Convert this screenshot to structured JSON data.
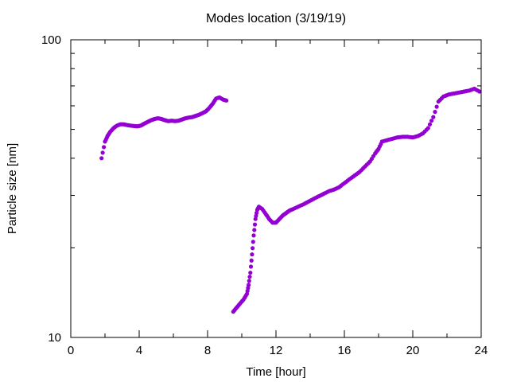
{
  "chart_data": {
    "type": "scatter",
    "title": "Modes location (3/19/19)",
    "xlabel": "Time [hour]",
    "ylabel": "Particle size [nm]",
    "xlim": [
      0,
      24
    ],
    "ylim": [
      10,
      100
    ],
    "yscale": "log",
    "xticks": [
      "0",
      "4",
      "8",
      "12",
      "16",
      "20",
      "24"
    ],
    "yticks": [
      "10",
      "100"
    ],
    "grid": false,
    "legend": "none",
    "marker_color": "#9400d3",
    "series": [
      {
        "x": [
          1.8,
          2.0,
          2.15,
          2.3,
          2.5,
          2.7,
          2.9,
          3.1,
          3.3,
          3.5,
          3.7,
          3.9,
          4.1,
          4.3,
          4.5,
          4.7,
          4.9,
          5.1,
          5.3,
          5.5,
          5.7,
          5.9,
          6.1,
          6.3,
          6.5,
          6.7,
          6.9,
          7.1,
          7.3,
          7.5,
          7.7,
          7.9,
          8.1,
          8.3,
          8.5,
          8.7,
          8.9,
          9.1
        ],
        "y": [
          40.0,
          45.5,
          47.5,
          49.0,
          50.5,
          51.5,
          52.0,
          52.0,
          51.7,
          51.5,
          51.3,
          51.2,
          51.5,
          52.3,
          53.0,
          53.7,
          54.2,
          54.5,
          54.2,
          53.7,
          53.3,
          53.5,
          53.3,
          53.5,
          54.0,
          54.5,
          54.8,
          55.0,
          55.5,
          56.0,
          56.7,
          57.5,
          59.0,
          61.0,
          63.5,
          64.0,
          63.0,
          62.5
        ]
      },
      {
        "x": [
          9.5,
          9.7,
          9.9,
          10.1,
          10.3,
          10.4,
          10.5,
          10.6,
          10.7,
          10.8,
          10.9,
          11.0,
          11.2,
          11.4,
          11.6,
          11.8,
          12.0,
          12.2,
          12.4,
          12.6,
          12.8,
          13.0,
          13.3,
          13.6,
          13.9,
          14.2,
          14.5,
          14.8,
          15.1,
          15.4,
          15.7,
          16.0,
          16.3,
          16.6,
          16.9,
          17.2,
          17.5,
          17.8,
          18.0,
          18.2,
          18.5,
          18.8,
          19.1,
          19.4,
          19.7,
          20.0,
          20.3,
          20.6,
          20.9,
          21.2,
          21.5,
          21.8,
          22.1,
          22.4,
          22.7,
          23.0,
          23.3,
          23.6,
          23.9
        ],
        "y": [
          12.2,
          12.6,
          13.0,
          13.4,
          14.0,
          15.0,
          16.5,
          19.0,
          22.0,
          25.0,
          26.8,
          27.5,
          27.0,
          26.0,
          25.0,
          24.3,
          24.3,
          25.0,
          25.7,
          26.2,
          26.7,
          27.0,
          27.5,
          28.0,
          28.6,
          29.2,
          29.8,
          30.4,
          31.0,
          31.4,
          32.0,
          33.0,
          34.0,
          35.0,
          36.0,
          37.5,
          39.0,
          41.5,
          43.0,
          45.5,
          46.0,
          46.5,
          47.0,
          47.2,
          47.2,
          47.0,
          47.5,
          48.5,
          50.5,
          55.0,
          62.0,
          64.5,
          65.5,
          66.0,
          66.5,
          67.0,
          67.5,
          68.5,
          67.0
        ]
      }
    ]
  }
}
